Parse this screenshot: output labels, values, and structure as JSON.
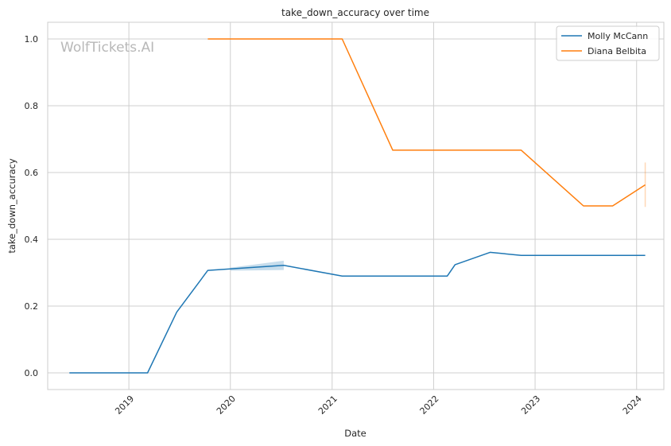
{
  "watermark": "WolfTickets.AI",
  "chart_data": {
    "type": "line",
    "title": "take_down_accuracy over time",
    "xlabel": "Date",
    "ylabel": "take_down_accuracy",
    "x_type": "date",
    "xlim": [
      "2018-03-15",
      "2024-04-08"
    ],
    "ylim": [
      -0.05,
      1.05
    ],
    "x_ticks": [
      "2019",
      "2020",
      "2021",
      "2022",
      "2023",
      "2024"
    ],
    "y_ticks": [
      "0.0",
      "0.2",
      "0.4",
      "0.6",
      "0.8",
      "1.0"
    ],
    "grid": true,
    "legend_position": "top-right",
    "series": [
      {
        "name": "Molly McCann",
        "color": "#1f77b4",
        "points": [
          [
            "2018-06-01",
            0.0
          ],
          [
            "2019-03-09",
            0.0
          ],
          [
            "2019-06-22",
            0.182
          ],
          [
            "2019-10-12",
            0.307
          ],
          [
            "2020-07-11",
            0.322
          ],
          [
            "2021-02-06",
            0.29
          ],
          [
            "2022-02-19",
            0.29
          ],
          [
            "2022-03-19",
            0.324
          ],
          [
            "2022-07-23",
            0.361
          ],
          [
            "2022-11-12",
            0.352
          ],
          [
            "2024-02-01",
            0.352
          ]
        ],
        "band": [
          [
            "2020-01-01",
            0.306,
            0.315
          ],
          [
            "2020-07-11",
            0.308,
            0.336
          ]
        ]
      },
      {
        "name": "Diana Belbita",
        "color": "#ff7f0e",
        "points": [
          [
            "2019-10-12",
            1.0
          ],
          [
            "2021-02-06",
            1.0
          ],
          [
            "2021-08-07",
            0.667
          ],
          [
            "2022-11-12",
            0.667
          ],
          [
            "2023-06-24",
            0.5
          ],
          [
            "2023-10-07",
            0.5
          ],
          [
            "2024-02-01",
            0.563
          ]
        ],
        "band": [
          [
            "2024-02-01",
            0.497,
            0.63
          ]
        ]
      }
    ]
  }
}
